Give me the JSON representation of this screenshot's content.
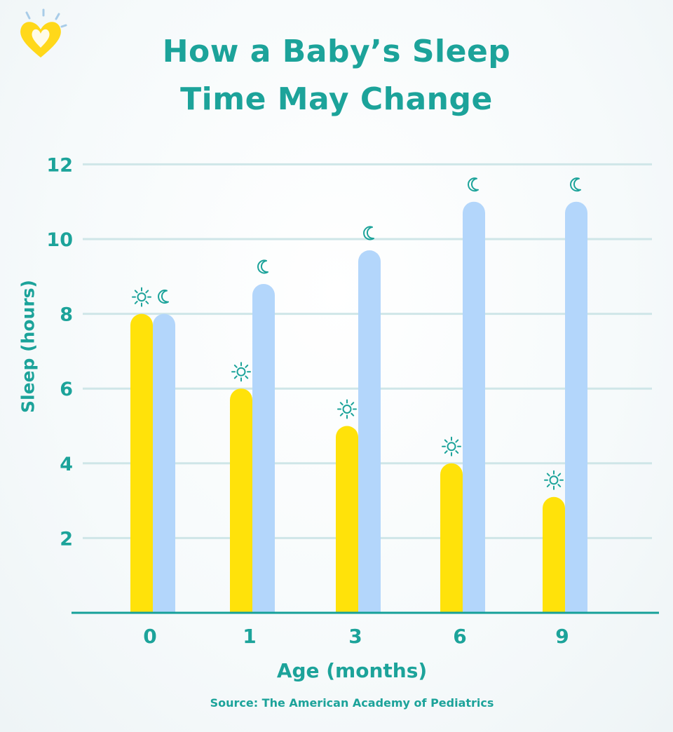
{
  "title_lines": [
    "How a Baby’s Sleep",
    "Time May Change"
  ],
  "source": "Source: The American Academy of Pediatrics",
  "icons": {
    "day": "sun-icon",
    "night": "moon-icon",
    "logo": "heart-logo"
  },
  "colors": {
    "accent": "#1ca39a",
    "day_bar": "#ffe20a",
    "night_bar": "#b3d6fb",
    "grid": "#cfe6e8",
    "logo": "#ffd81a"
  },
  "chart_data": {
    "type": "bar",
    "title": "How a Baby’s Sleep Time May Change",
    "xlabel": "Age (months)",
    "ylabel": "Sleep (hours)",
    "categories": [
      "0",
      "1",
      "3",
      "6",
      "9"
    ],
    "series": [
      {
        "values": [
          8,
          6,
          5,
          4,
          3.1
        ]
      },
      {
        "values": [
          8,
          8.8,
          9.7,
          11,
          11
        ]
      }
    ],
    "ylim": [
      0,
      12
    ],
    "yticks": [
      "2",
      "4",
      "6",
      "8",
      "10",
      "12"
    ],
    "grid": true
  }
}
